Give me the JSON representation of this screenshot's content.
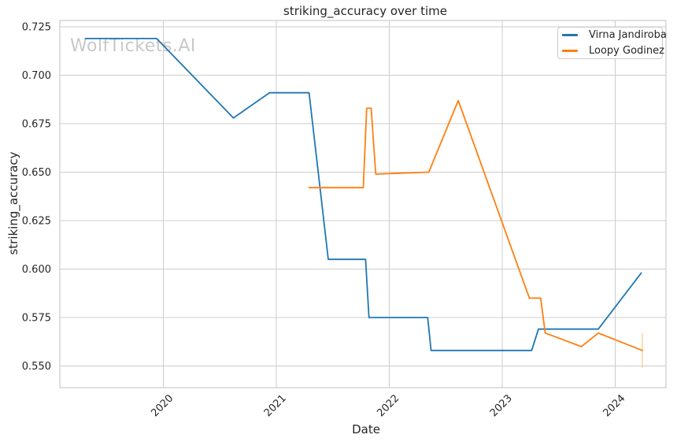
{
  "watermark": "WolfTickets.AI",
  "chart_data": {
    "type": "line",
    "title": "striking_accuracy over time",
    "xlabel": "Date",
    "ylabel": "striking_accuracy",
    "grid": true,
    "legend_position": "upper right",
    "x_ticks": [
      2020,
      2021,
      2022,
      2023,
      2024
    ],
    "x_tick_labels": [
      "2020",
      "2021",
      "2022",
      "2023",
      "2024"
    ],
    "y_ticks": [
      0.55,
      0.575,
      0.6,
      0.625,
      0.65,
      0.675,
      0.7,
      0.725
    ],
    "y_tick_labels": [
      "0.550",
      "0.575",
      "0.600",
      "0.625",
      "0.650",
      "0.675",
      "0.700",
      "0.725"
    ],
    "x_range": [
      2019.084,
      2024.449
    ],
    "y_range": [
      0.5388,
      0.7283
    ],
    "colors": {
      "grid": "#cccccc",
      "axes": "#cccccc",
      "text": "#262626",
      "watermark": "#c8c8c8"
    },
    "series": [
      {
        "name": "Virna Jandiroba",
        "color": "#1f77b4",
        "points": [
          [
            2019.31,
            0.719
          ],
          [
            2019.94,
            0.719
          ],
          [
            2020.62,
            0.678
          ],
          [
            2020.94,
            0.691
          ],
          [
            2021.29,
            0.691
          ],
          [
            2021.46,
            0.605
          ],
          [
            2021.79,
            0.605
          ],
          [
            2021.82,
            0.575
          ],
          [
            2022.34,
            0.575
          ],
          [
            2022.37,
            0.558
          ],
          [
            2023.26,
            0.558
          ],
          [
            2023.32,
            0.569
          ],
          [
            2023.85,
            0.569
          ],
          [
            2024.23,
            0.598
          ]
        ]
      },
      {
        "name": "Loopy Godinez",
        "color": "#ff7f0e",
        "points": [
          [
            2021.29,
            0.642
          ],
          [
            2021.77,
            0.642
          ],
          [
            2021.8,
            0.683
          ],
          [
            2021.84,
            0.683
          ],
          [
            2021.88,
            0.649
          ],
          [
            2022.35,
            0.65
          ],
          [
            2022.61,
            0.687
          ],
          [
            2023.24,
            0.585
          ],
          [
            2023.34,
            0.585
          ],
          [
            2023.38,
            0.567
          ],
          [
            2023.7,
            0.56
          ],
          [
            2023.85,
            0.567
          ],
          [
            2024.24,
            0.558
          ]
        ]
      }
    ],
    "error_bar": {
      "x": 2024.24,
      "y_low": 0.549,
      "y_high": 0.567,
      "color": "#ffd0a0"
    }
  }
}
